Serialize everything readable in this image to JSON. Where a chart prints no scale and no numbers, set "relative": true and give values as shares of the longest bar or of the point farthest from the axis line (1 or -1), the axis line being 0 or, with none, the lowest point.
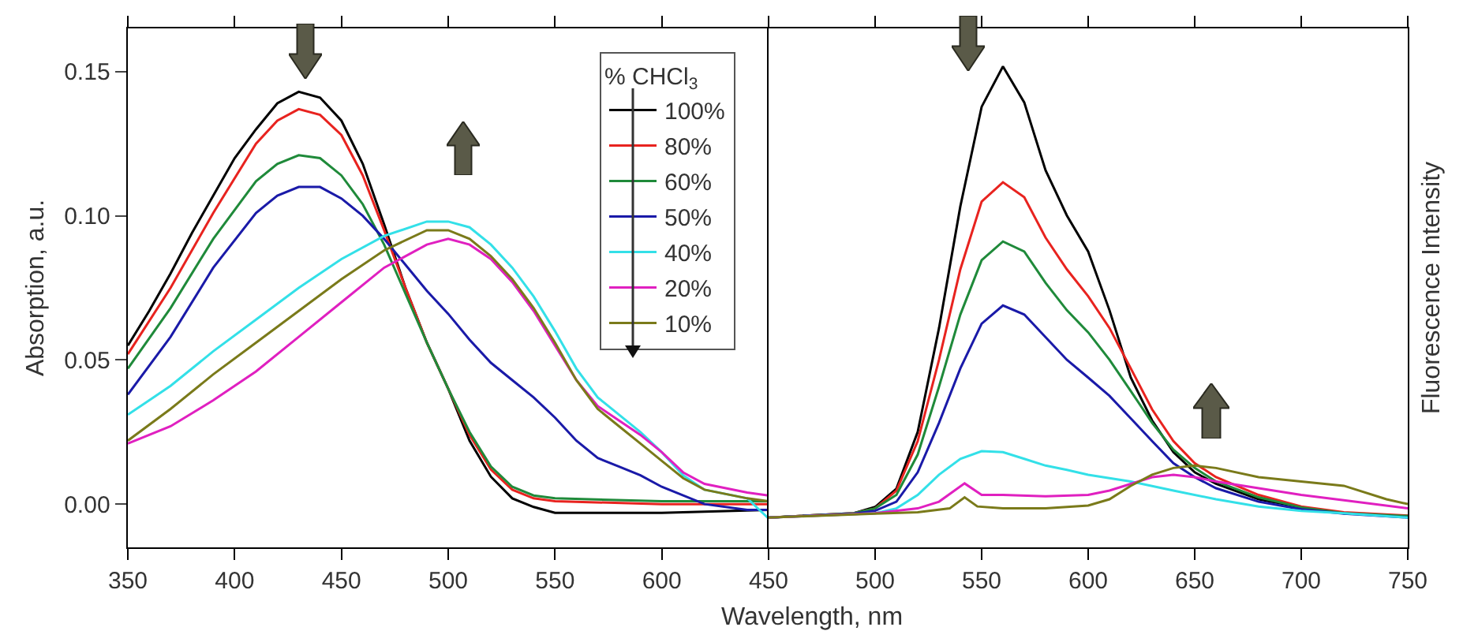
{
  "chart_data": [
    {
      "type": "line",
      "ylabel": "Absorption, a.u.",
      "xlim": [
        350,
        650
      ],
      "xticks": [
        350,
        400,
        450,
        500,
        550,
        600,
        {
          "value": 650,
          "label": null
        }
      ],
      "ylim": [
        -0.015,
        0.165
      ],
      "yticks": [
        {
          "value": 0,
          "label": "0.00"
        },
        {
          "value": 0.05,
          "label": "0.05"
        },
        {
          "value": 0.1,
          "label": "0.10"
        },
        {
          "value": 0.15,
          "label": "0.15"
        }
      ],
      "series": [
        {
          "color": "#000000",
          "x": [
            350,
            360,
            370,
            380,
            390,
            400,
            410,
            420,
            430,
            440,
            450,
            460,
            470,
            480,
            490,
            500,
            510,
            520,
            530,
            540,
            550,
            600,
            650
          ],
          "values": [
            0.055,
            0.067,
            0.08,
            0.094,
            0.107,
            0.12,
            0.13,
            0.139,
            0.143,
            0.141,
            0.133,
            0.118,
            0.097,
            0.075,
            0.056,
            0.04,
            0.022,
            0.0095,
            0.002,
            -0.001,
            -0.003,
            -0.003,
            -0.002
          ]
        },
        {
          "color": "#e8231f",
          "x": [
            350,
            370,
            390,
            410,
            420,
            430,
            440,
            450,
            460,
            470,
            480,
            490,
            500,
            510,
            520,
            530,
            540,
            550,
            600,
            650
          ],
          "values": [
            0.052,
            0.075,
            0.101,
            0.125,
            0.133,
            0.137,
            0.135,
            0.128,
            0.114,
            0.095,
            0.075,
            0.056,
            0.04,
            0.024,
            0.012,
            0.005,
            0.002,
            0.001,
            0,
            0
          ]
        },
        {
          "color": "#1f8a3a",
          "x": [
            350,
            370,
            390,
            410,
            420,
            430,
            440,
            450,
            460,
            470,
            480,
            490,
            500,
            510,
            520,
            530,
            540,
            550,
            600,
            650
          ],
          "values": [
            0.047,
            0.068,
            0.092,
            0.112,
            0.118,
            0.121,
            0.12,
            0.114,
            0.104,
            0.09,
            0.073,
            0.056,
            0.04,
            0.025,
            0.013,
            0.006,
            0.003,
            0.002,
            0.001,
            0.001
          ]
        },
        {
          "color": "#1a1aa8",
          "x": [
            350,
            370,
            390,
            410,
            420,
            430,
            440,
            450,
            460,
            470,
            480,
            490,
            500,
            510,
            520,
            530,
            540,
            550,
            560,
            570,
            580,
            590,
            600,
            620,
            640,
            650
          ],
          "values": [
            0.038,
            0.058,
            0.082,
            0.101,
            0.107,
            0.11,
            0.11,
            0.106,
            0.1,
            0.092,
            0.083,
            0.074,
            0.066,
            0.057,
            0.049,
            0.043,
            0.037,
            0.03,
            0.022,
            0.016,
            0.013,
            0.01,
            0.006,
            0,
            -0.002,
            -0.002
          ]
        },
        {
          "color": "#33e0e8",
          "x": [
            350,
            370,
            390,
            410,
            430,
            450,
            470,
            490,
            500,
            510,
            520,
            530,
            540,
            550,
            560,
            570,
            580,
            590,
            600,
            610,
            620,
            640,
            650
          ],
          "values": [
            0.031,
            0.041,
            0.053,
            0.064,
            0.075,
            0.085,
            0.093,
            0.098,
            0.098,
            0.096,
            0.09,
            0.082,
            0.072,
            0.06,
            0.047,
            0.037,
            0.031,
            0.025,
            0.018,
            0.01,
            0.005,
            0.002,
            -0.005
          ]
        },
        {
          "color": "#e020c0",
          "x": [
            350,
            370,
            390,
            410,
            430,
            450,
            470,
            490,
            500,
            510,
            520,
            530,
            540,
            550,
            560,
            570,
            580,
            590,
            600,
            610,
            620,
            640,
            650
          ],
          "values": [
            0.021,
            0.027,
            0.036,
            0.046,
            0.058,
            0.07,
            0.082,
            0.09,
            0.092,
            0.09,
            0.085,
            0.077,
            0.067,
            0.055,
            0.043,
            0.034,
            0.029,
            0.024,
            0.018,
            0.011,
            0.007,
            0.004,
            0.003
          ]
        },
        {
          "color": "#7a7a1a",
          "x": [
            350,
            370,
            390,
            410,
            430,
            450,
            470,
            490,
            500,
            510,
            520,
            530,
            540,
            550,
            560,
            570,
            580,
            590,
            600,
            610,
            620,
            640,
            650
          ],
          "values": [
            0.022,
            0.033,
            0.045,
            0.056,
            0.067,
            0.078,
            0.088,
            0.095,
            0.095,
            0.092,
            0.086,
            0.078,
            0.068,
            0.056,
            0.043,
            0.033,
            0.027,
            0.021,
            0.015,
            0.009,
            0.005,
            0.002,
            0.001
          ]
        }
      ]
    },
    {
      "type": "line",
      "relative": true,
      "xlabel": "Wavelength, nm",
      "ylabel": "Fluorescence Intensity",
      "legend_title": "% CHCl$_{3}$",
      "legend": "top left",
      "xlim": [
        450,
        750
      ],
      "xticks": [
        450,
        500,
        550,
        600,
        650,
        700,
        750
      ],
      "series": [
        {
          "name": "100%",
          "color": "#000000",
          "x": [
            450,
            490,
            500,
            510,
            520,
            530,
            540,
            550,
            560,
            570,
            580,
            590,
            600,
            610,
            620,
            630,
            640,
            650,
            660,
            680,
            700,
            720,
            750
          ],
          "values": [
            0.062,
            0.071,
            0.084,
            0.122,
            0.24,
            0.456,
            0.709,
            0.916,
            1,
            0.925,
            0.784,
            0.69,
            0.615,
            0.493,
            0.353,
            0.264,
            0.198,
            0.156,
            0.132,
            0.1,
            0.083,
            0.071,
            0.065
          ]
        },
        {
          "name": "80%",
          "color": "#e8231f",
          "x": [
            450,
            490,
            500,
            510,
            520,
            530,
            540,
            550,
            560,
            570,
            580,
            590,
            600,
            610,
            620,
            630,
            640,
            650,
            660,
            680,
            700,
            720,
            750
          ],
          "values": [
            0.062,
            0.071,
            0.081,
            0.118,
            0.221,
            0.39,
            0.578,
            0.719,
            0.759,
            0.728,
            0.644,
            0.578,
            0.522,
            0.456,
            0.372,
            0.287,
            0.221,
            0.175,
            0.146,
            0.109,
            0.085,
            0.073,
            0.066
          ]
        },
        {
          "name": "60%",
          "color": "#1f8a3a",
          "x": [
            450,
            490,
            500,
            510,
            520,
            530,
            540,
            550,
            560,
            570,
            580,
            590,
            600,
            610,
            620,
            630,
            640,
            650,
            660,
            680,
            700,
            720,
            750
          ],
          "values": [
            0.062,
            0.071,
            0.081,
            0.109,
            0.193,
            0.334,
            0.484,
            0.597,
            0.636,
            0.615,
            0.55,
            0.493,
            0.447,
            0.39,
            0.325,
            0.259,
            0.203,
            0.165,
            0.137,
            0.104,
            0.083,
            0.071,
            0.065
          ]
        },
        {
          "name": "50%",
          "color": "#1a1aa8",
          "x": [
            450,
            490,
            500,
            510,
            520,
            530,
            540,
            550,
            560,
            570,
            580,
            590,
            600,
            610,
            620,
            630,
            640,
            650,
            660,
            680,
            700,
            720,
            750
          ],
          "values": [
            0.062,
            0.07,
            0.076,
            0.095,
            0.156,
            0.259,
            0.372,
            0.465,
            0.503,
            0.484,
            0.437,
            0.39,
            0.353,
            0.315,
            0.268,
            0.221,
            0.175,
            0.146,
            0.123,
            0.095,
            0.079,
            0.07,
            0.062
          ]
        },
        {
          "name": "40%",
          "color": "#33e0e8",
          "x": [
            450,
            500,
            510,
            520,
            530,
            540,
            550,
            560,
            570,
            580,
            590,
            600,
            620,
            640,
            660,
            680,
            700,
            720,
            750
          ],
          "values": [
            0.062,
            0.071,
            0.081,
            0.109,
            0.151,
            0.184,
            0.2,
            0.198,
            0.184,
            0.17,
            0.161,
            0.151,
            0.137,
            0.118,
            0.1,
            0.085,
            0.076,
            0.071,
            0.062
          ]
        },
        {
          "name": "20%",
          "color": "#e020c0",
          "x": [
            450,
            500,
            520,
            530,
            542,
            550,
            560,
            580,
            600,
            610,
            620,
            630,
            640,
            650,
            660,
            680,
            700,
            720,
            750
          ],
          "values": [
            0.062,
            0.071,
            0.081,
            0.095,
            0.133,
            0.109,
            0.109,
            0.106,
            0.109,
            0.118,
            0.132,
            0.146,
            0.151,
            0.146,
            0.137,
            0.123,
            0.109,
            0.098,
            0.081
          ]
        },
        {
          "name": "10%",
          "color": "#7a7a1a",
          "x": [
            450,
            500,
            520,
            535,
            542,
            548,
            560,
            580,
            600,
            610,
            620,
            630,
            640,
            650,
            660,
            680,
            700,
            720,
            740,
            750
          ],
          "values": [
            0.062,
            0.07,
            0.073,
            0.081,
            0.104,
            0.085,
            0.081,
            0.081,
            0.087,
            0.1,
            0.128,
            0.151,
            0.165,
            0.17,
            0.165,
            0.146,
            0.137,
            0.128,
            0.1,
            0.09
          ]
        }
      ]
    }
  ]
}
